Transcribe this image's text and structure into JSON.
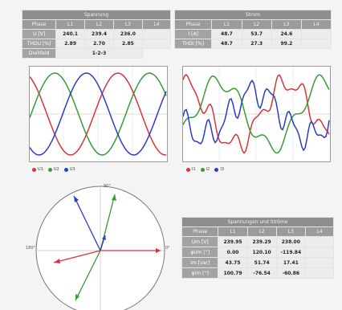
{
  "voltage_table": {
    "title": "Spannung",
    "headers": [
      "Phase",
      "L1",
      "L2",
      "L3",
      "L4"
    ],
    "rows": [
      {
        "label": "U [V]",
        "values": [
          "240.1",
          "239.4",
          "236.0",
          ""
        ]
      },
      {
        "label": "THDU [%]",
        "values": [
          "2.89",
          "2.70",
          "2.85",
          ""
        ]
      },
      {
        "label": "Drehfeld",
        "value": "1-2-3"
      }
    ]
  },
  "current_table": {
    "title": "Strom",
    "headers": [
      "Phase",
      "L1",
      "L2",
      "L3",
      "L4"
    ],
    "rows": [
      {
        "label": "I [A]",
        "values": [
          "48.7",
          "53.7",
          "24.6",
          ""
        ]
      },
      {
        "label": "THDI [%]",
        "values": [
          "48.7",
          "27.3",
          "99.2",
          ""
        ]
      }
    ]
  },
  "voltage_legend": [
    "U1",
    "U2",
    "U3"
  ],
  "current_legend": [
    "I1",
    "I2",
    "I3"
  ],
  "phasor": {
    "label_top": "90°",
    "label_left": "180°",
    "label_right": "0°"
  },
  "power_table": {
    "title": "Spannungen und Ströme",
    "headers": [
      "Phase",
      "L1",
      "L2",
      "L3",
      "L4"
    ],
    "rows": [
      {
        "label": "Um [V]",
        "values": [
          "239.95",
          "239.29",
          "238.00",
          ""
        ]
      },
      {
        "label": "φUm [°]",
        "values": [
          "0.00",
          "120.10",
          "-119.84",
          ""
        ]
      },
      {
        "label": "Im [var]",
        "values": [
          "43.75",
          "51.74",
          "17.41",
          ""
        ]
      },
      {
        "label": "φIm [°]",
        "values": [
          "100.79",
          "-76.54",
          "-60.86",
          ""
        ]
      }
    ]
  },
  "colors": {
    "phase1": "#d9343b",
    "phase2": "#3a9a3a",
    "phase3": "#2c3cc4"
  }
}
